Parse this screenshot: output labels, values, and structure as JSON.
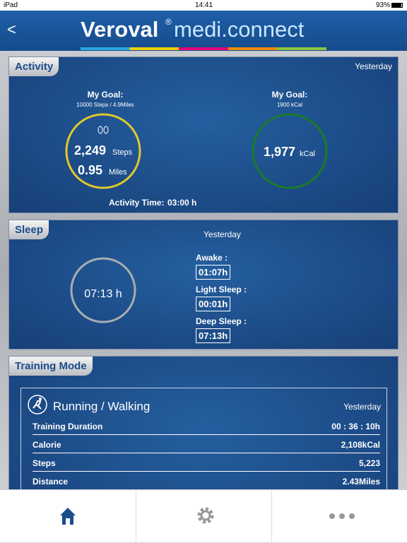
{
  "status_bar": {
    "device": "iPad",
    "time": "14:41",
    "battery": "93%"
  },
  "header": {
    "back": "<",
    "brand": "Veroval",
    "registered": "®",
    "product": "medi.connect"
  },
  "activity": {
    "title": "Activity",
    "date": "Yesterday",
    "steps_goal": {
      "label": "My Goal:",
      "detail": "10000 Steps / 4.9Miles"
    },
    "steps": {
      "value": "2,249",
      "unit": "Steps"
    },
    "miles": {
      "value": "0.95",
      "unit": "Miles"
    },
    "kcal_goal": {
      "label": "My Goal:",
      "detail": "1900 kCal"
    },
    "kcal": {
      "value": "1,977",
      "unit": "kCal"
    },
    "activity_time": {
      "label": "Activity Time:",
      "value": "03:00 h"
    }
  },
  "sleep": {
    "title": "Sleep",
    "date": "Yesterday",
    "total": "07:13 h",
    "phases": [
      {
        "label": "Awake :",
        "value": "01:07h"
      },
      {
        "label": "Light Sleep :",
        "value": "00:01h"
      },
      {
        "label": "Deep Sleep :",
        "value": "07:13h"
      }
    ]
  },
  "training": {
    "title": "Training Mode",
    "activity": "Running / Walking",
    "date": "Yesterday",
    "rows": [
      [
        "Training Duration",
        "00 : 36 : 10h"
      ],
      [
        "Calorie",
        "2,108kCal"
      ],
      [
        "Steps",
        "5,223"
      ],
      [
        "Distance",
        "2.43Miles"
      ]
    ]
  }
}
